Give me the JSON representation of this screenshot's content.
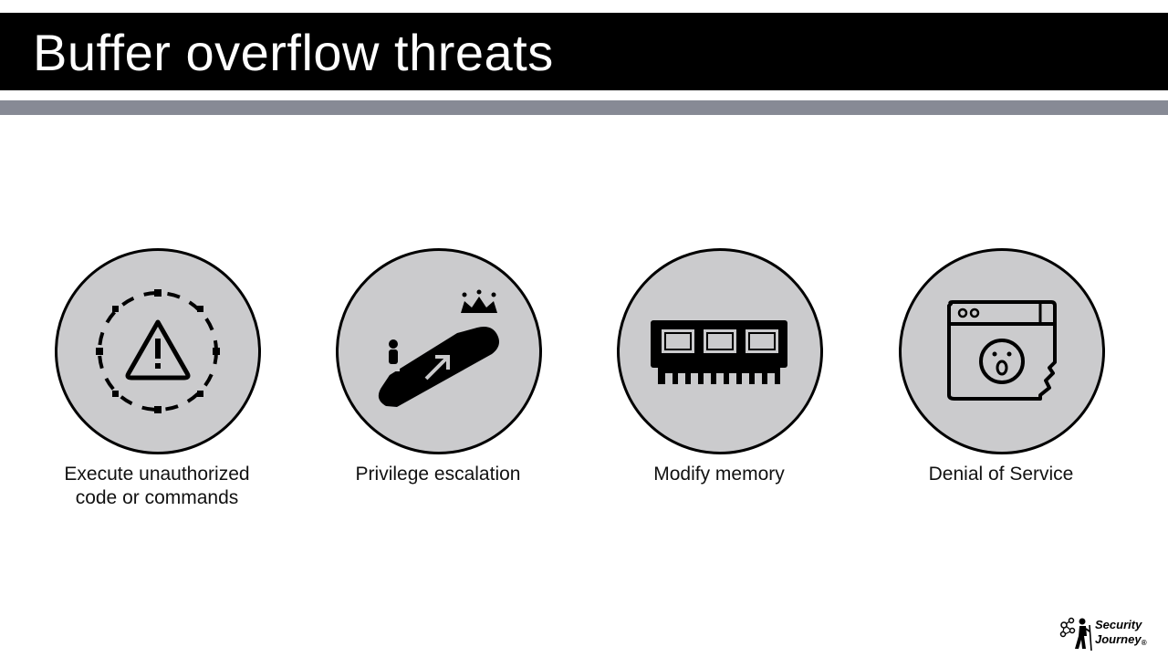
{
  "slide": {
    "title": "Buffer overflow threats"
  },
  "threats": [
    {
      "icon": "warning-icon",
      "label_line1": "Execute unauthorized",
      "label_line2": "code or commands"
    },
    {
      "icon": "escalator-crown-icon",
      "label_line1": "Privilege escalation",
      "label_line2": ""
    },
    {
      "icon": "memory-chip-icon",
      "label_line1": "Modify memory",
      "label_line2": ""
    },
    {
      "icon": "broken-browser-icon",
      "label_line1": "Denial of Service",
      "label_line2": ""
    }
  ],
  "logo": {
    "line1": "Security",
    "line2": "Journey",
    "mark": "®"
  },
  "colors": {
    "title_bar": "#000000",
    "title_text": "#ffffff",
    "accent_bar": "#878a95",
    "circle_fill": "#cbcbcd",
    "circle_stroke": "#000000"
  }
}
